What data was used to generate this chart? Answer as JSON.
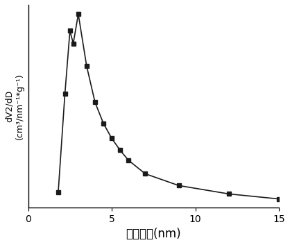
{
  "x": [
    1.8,
    2.2,
    2.5,
    2.7,
    3.0,
    3.5,
    4.0,
    4.5,
    5.0,
    5.5,
    6.0,
    7.0,
    9.0,
    12.0,
    15.0
  ],
  "y": [
    0.018,
    0.135,
    0.21,
    0.195,
    0.23,
    0.168,
    0.125,
    0.1,
    0.082,
    0.068,
    0.056,
    0.04,
    0.026,
    0.016,
    0.01
  ],
  "xlabel": "孔径分布(nm)",
  "ylabel_line1": "dV2/dD",
  "ylabel_line2": "(cm³/nm⁻¹*g⁻¹)",
  "xlim": [
    0,
    15
  ],
  "xticks": [
    0,
    5,
    10,
    15
  ],
  "line_color": "#1a1a1a",
  "marker": "s",
  "marker_size": 5,
  "line_width": 1.2,
  "background_color": "#ffffff",
  "xlabel_fontsize": 12,
  "ylabel_fontsize": 9,
  "tick_fontsize": 10
}
